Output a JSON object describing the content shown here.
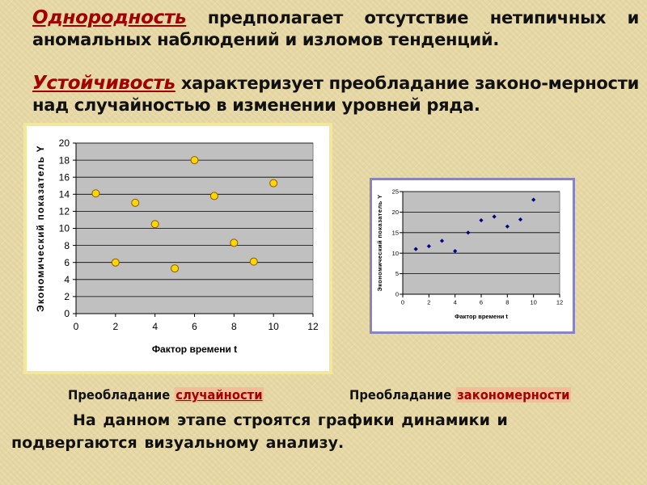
{
  "intro": {
    "homogeneity_term": "Однородность",
    "homogeneity_text": " предполагает отсутствие нетипичных и аномальных наблюдений и изломов тенденций.",
    "stability_term": "Устойчивость",
    "stability_text": " характеризует преобладание законо-мерности над случайностью в изменении уровней ряда."
  },
  "captions": {
    "left_prefix": "Преобладание",
    "left_highlight": "случайности",
    "right_prefix": "Преобладание",
    "right_highlight": "закономерности"
  },
  "bottom_text": "На данном этапе строятся графики динамики и подвергаются визуальному анализу.",
  "colors": {
    "term": "#a30000",
    "plot_bg": "#c0c0c0",
    "random_marker": "#ffd700",
    "trend_marker": "#000080"
  },
  "chart_data": [
    {
      "type": "scatter",
      "xlabel": "Фактор времени  t",
      "ylabel": "Экономический показатель Y",
      "xlim": [
        0,
        12
      ],
      "ylim": [
        0,
        20
      ],
      "xticks": [
        0,
        2,
        4,
        6,
        8,
        10,
        12
      ],
      "yticks": [
        0,
        2,
        4,
        6,
        8,
        10,
        12,
        14,
        16,
        18,
        20
      ],
      "grid": true,
      "x": [
        1,
        2,
        3,
        4,
        5,
        6,
        7,
        8,
        9,
        10
      ],
      "y": [
        14.1,
        6.0,
        13.0,
        10.5,
        5.3,
        18.0,
        13.8,
        8.3,
        6.1,
        15.3
      ]
    },
    {
      "type": "scatter",
      "xlabel": "Фактор времени  t",
      "ylabel": "Экономический показатель Y",
      "xlim": [
        0,
        12
      ],
      "ylim": [
        0,
        25
      ],
      "xticks": [
        0,
        2,
        4,
        6,
        8,
        10,
        12
      ],
      "yticks": [
        0,
        5,
        10,
        15,
        20,
        25
      ],
      "grid": true,
      "x": [
        1,
        2,
        3,
        4,
        5,
        6,
        7,
        8,
        9,
        10
      ],
      "y": [
        11.0,
        11.7,
        13.0,
        10.5,
        15.0,
        18.0,
        18.9,
        16.5,
        18.2,
        23.0
      ]
    }
  ]
}
